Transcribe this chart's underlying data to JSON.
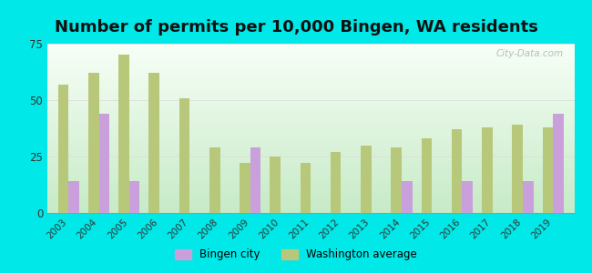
{
  "title": "Number of permits per 10,000 Bingen, WA residents",
  "years": [
    2003,
    2004,
    2005,
    2006,
    2007,
    2008,
    2009,
    2010,
    2011,
    2012,
    2013,
    2014,
    2015,
    2016,
    2017,
    2018,
    2019
  ],
  "bingen_values": [
    14,
    44,
    14,
    null,
    null,
    null,
    29,
    null,
    null,
    null,
    null,
    14,
    null,
    14,
    null,
    14,
    44
  ],
  "wa_values": [
    57,
    62,
    70,
    62,
    51,
    29,
    22,
    25,
    22,
    27,
    30,
    29,
    33,
    37,
    38,
    39,
    38
  ],
  "bar_color_bingen": "#c9a0dc",
  "bar_color_wa": "#b8c87a",
  "background_top": "#f0faf0",
  "background_bottom": "#c8eec8",
  "outer_background": "#00e8e8",
  "ylim": [
    0,
    75
  ],
  "yticks": [
    0,
    25,
    50,
    75
  ],
  "legend_bingen": "Bingen city",
  "legend_wa": "Washington average",
  "bar_width": 0.35,
  "title_fontsize": 13,
  "watermark": "City-Data.com"
}
